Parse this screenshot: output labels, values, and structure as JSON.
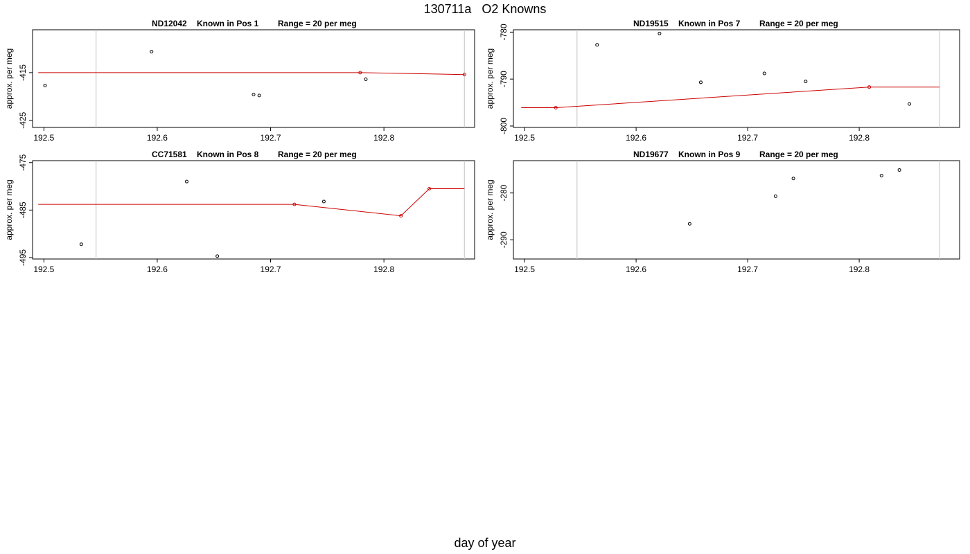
{
  "page": {
    "title": "130711a   O2 Knowns",
    "xlabel": "day of year"
  },
  "colors": {
    "fit_line": "#cc0000",
    "marker_outline": "#000000",
    "marker_fit": "#cc0000",
    "window_line": "#cccccc",
    "frame": "#000000"
  },
  "chart_data": [
    {
      "type": "scatter",
      "title_parts": [
        "ND12042",
        "Known in Pos 1",
        "Range = 20 per meg"
      ],
      "ylabel": "approx. per meg",
      "xlim": [
        192.49,
        192.88
      ],
      "ylim": [
        -426.5,
        -406.0
      ],
      "xticks": [
        192.5,
        192.6,
        192.7,
        192.8
      ],
      "yticks": [
        -425,
        -415
      ],
      "vlines": [
        192.546,
        192.871
      ],
      "points": [
        [
          192.501,
          -417.7
        ],
        [
          192.595,
          -410.6
        ],
        [
          192.685,
          -419.6
        ],
        [
          192.69,
          -419.8
        ],
        [
          192.784,
          -416.4
        ]
      ],
      "fit_points": [
        [
          192.779,
          -415.0
        ],
        [
          192.871,
          -415.4
        ]
      ],
      "fit_line": [
        [
          192.495,
          -415.0
        ],
        [
          192.779,
          -415.0
        ],
        [
          192.871,
          -415.4
        ]
      ]
    },
    {
      "type": "scatter",
      "title_parts": [
        "ND19515",
        "Known in Pos 7",
        "Range = 20 per meg"
      ],
      "ylabel": "approx. per meg",
      "xlim": [
        192.49,
        192.89
      ],
      "ylim": [
        -800.3,
        -779.5
      ],
      "xticks": [
        192.5,
        192.6,
        192.7,
        192.8
      ],
      "yticks": [
        -800,
        -790,
        -780
      ],
      "vlines": [
        192.547,
        192.872
      ],
      "points": [
        [
          192.565,
          -782.7
        ],
        [
          192.621,
          -780.3
        ],
        [
          192.658,
          -790.7
        ],
        [
          192.715,
          -788.8
        ],
        [
          192.752,
          -790.5
        ],
        [
          192.845,
          -795.3
        ]
      ],
      "fit_points": [
        [
          192.528,
          -796.1
        ],
        [
          192.809,
          -791.7
        ]
      ],
      "fit_line": [
        [
          192.497,
          -796.1
        ],
        [
          192.528,
          -796.1
        ],
        [
          192.809,
          -791.7
        ],
        [
          192.872,
          -791.7
        ]
      ]
    },
    {
      "type": "scatter",
      "title_parts": [
        "CC71581",
        "Known in Pos 8",
        "Range = 20 per meg"
      ],
      "ylabel": "approx. per meg",
      "xlim": [
        192.49,
        192.88
      ],
      "ylim": [
        -495.3,
        -474.6
      ],
      "xticks": [
        192.5,
        192.6,
        192.7,
        192.8
      ],
      "yticks": [
        -495,
        -485,
        -475
      ],
      "vlines": [
        192.546,
        192.871
      ],
      "points": [
        [
          192.533,
          -492.2
        ],
        [
          192.626,
          -479.0
        ],
        [
          192.653,
          -494.7
        ],
        [
          192.747,
          -483.2
        ]
      ],
      "fit_points": [
        [
          192.721,
          -483.8
        ],
        [
          192.815,
          -486.2
        ],
        [
          192.84,
          -480.5
        ]
      ],
      "fit_line": [
        [
          192.495,
          -483.8
        ],
        [
          192.721,
          -483.8
        ],
        [
          192.815,
          -486.2
        ],
        [
          192.84,
          -480.5
        ],
        [
          192.871,
          -480.5
        ]
      ]
    },
    {
      "type": "scatter",
      "title_parts": [
        "ND19677",
        "Known in Pos 9",
        "Range = 20 per meg"
      ],
      "ylabel": "approx. per meg",
      "xlim": [
        192.49,
        192.89
      ],
      "ylim": [
        -294.1,
        -273.1
      ],
      "xticks": [
        192.5,
        192.6,
        192.7,
        192.8
      ],
      "yticks": [
        -290,
        -280
      ],
      "vlines": [
        192.547,
        192.872
      ],
      "points": [
        [
          192.648,
          -286.6
        ],
        [
          192.725,
          -280.7
        ],
        [
          192.741,
          -276.9
        ],
        [
          192.82,
          -276.3
        ],
        [
          192.836,
          -275.1
        ]
      ],
      "fit_points": [],
      "fit_line": []
    }
  ]
}
